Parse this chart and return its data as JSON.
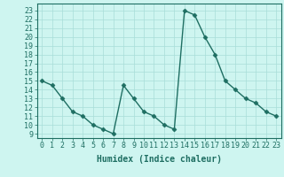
{
  "x": [
    0,
    1,
    2,
    3,
    4,
    5,
    6,
    7,
    8,
    9,
    10,
    11,
    12,
    13,
    14,
    15,
    16,
    17,
    18,
    19,
    20,
    21,
    22,
    23
  ],
  "y": [
    15,
    14.5,
    13,
    11.5,
    11,
    10,
    9.5,
    9,
    14.5,
    13,
    11.5,
    11,
    10,
    9.5,
    23,
    22.5,
    20,
    18,
    15,
    14,
    13,
    12.5,
    11.5,
    11
  ],
  "line_color": "#1e6e62",
  "bg_color": "#cef5f0",
  "grid_color": "#a8ddd8",
  "xlabel": "Humidex (Indice chaleur)",
  "ylabel_ticks": [
    9,
    10,
    11,
    12,
    13,
    14,
    15,
    16,
    17,
    18,
    19,
    20,
    21,
    22,
    23
  ],
  "xlim": [
    -0.5,
    23.5
  ],
  "ylim": [
    8.5,
    23.8
  ],
  "label_fontsize": 7,
  "tick_fontsize": 6,
  "marker_size": 2.5,
  "line_width": 1.0
}
